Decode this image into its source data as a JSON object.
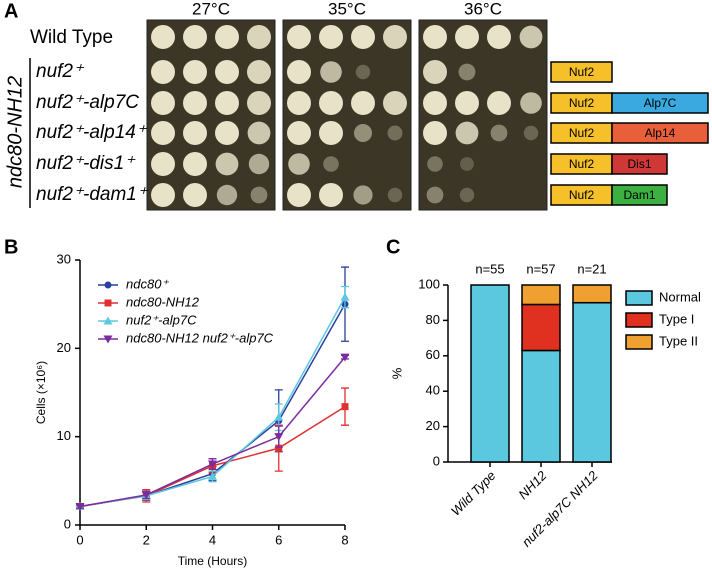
{
  "panel_labels": [
    "A",
    "B",
    "C"
  ],
  "panel_a": {
    "temperatures": [
      "27°C",
      "35°C",
      "36°C"
    ],
    "wild_type": "Wild Type",
    "group_label": "ndc80-NH12",
    "strains": [
      "nuf2⁺",
      "nuf2⁺-alp7C",
      "nuf2⁺-alp14⁺",
      "nuf2⁺-dis1⁺",
      "nuf2⁺-dam1⁺"
    ],
    "constructs": [
      {
        "parts": [
          "Nuf2"
        ],
        "colors": [
          "#f5c02a"
        ]
      },
      {
        "parts": [
          "Nuf2",
          "Alp7C"
        ],
        "colors": [
          "#f5c02a",
          "#3aa9e0"
        ]
      },
      {
        "parts": [
          "Nuf2",
          "Alp14"
        ],
        "colors": [
          "#f5c02a",
          "#e8603a"
        ]
      },
      {
        "parts": [
          "Nuf2",
          "Dis1"
        ],
        "colors": [
          "#f5c02a",
          "#d03838"
        ]
      },
      {
        "parts": [
          "Nuf2",
          "Dam1"
        ],
        "colors": [
          "#f5c02a",
          "#3cb040"
        ]
      }
    ]
  },
  "chart_data": [
    {
      "type": "line",
      "xlabel": "Time (Hours)",
      "ylabel": "Cells (×10⁶)",
      "x": [
        0,
        2,
        4,
        6,
        8
      ],
      "xlim": [
        0,
        8
      ],
      "xticks": [
        0,
        2,
        4,
        6,
        8
      ],
      "ylim": [
        0,
        30
      ],
      "yticks": [
        0,
        10,
        20,
        30
      ],
      "series": [
        {
          "name": "ndc80⁺",
          "color": "#2b3f9e",
          "marker": "circle",
          "values": [
            2.1,
            3.3,
            5.8,
            11.8,
            25.0
          ],
          "errors": [
            0.2,
            0.5,
            0.8,
            3.5,
            4.2
          ]
        },
        {
          "name": "ndc80-NH12",
          "color": "#e03030",
          "marker": "square",
          "values": [
            2.1,
            3.3,
            6.7,
            8.7,
            13.4
          ],
          "errors": [
            0.2,
            0.7,
            0.8,
            2.6,
            2.1
          ]
        },
        {
          "name": "nuf2⁺-alp7C",
          "color": "#5bc8e0",
          "marker": "triangle-up",
          "values": [
            2.1,
            3.3,
            5.5,
            12.2,
            25.8
          ],
          "errors": [
            0.2,
            0.4,
            0.6,
            1.5,
            1.2
          ]
        },
        {
          "name": "ndc80-NH12 nuf2⁺-alp7C",
          "color": "#7b2d9e",
          "marker": "triangle-down",
          "values": [
            2.1,
            3.4,
            6.9,
            10.0,
            19.0
          ],
          "errors": [
            0.2,
            0.4,
            0.6,
            1.2,
            0.2
          ]
        }
      ]
    },
    {
      "type": "stacked-bar",
      "ylabel": "%",
      "categories": [
        "Wild Type",
        "NH12",
        "nuf2-alp7C NH12"
      ],
      "annotations": [
        "n=55",
        "n=57",
        "n=21"
      ],
      "ylim": [
        0,
        100
      ],
      "yticks": [
        0,
        20,
        40,
        60,
        80,
        100
      ],
      "series": [
        {
          "name": "Normal",
          "color": "#5bc8e0",
          "values": [
            100,
            63,
            90
          ]
        },
        {
          "name": "Type I",
          "color": "#e03020",
          "values": [
            0,
            26,
            0
          ]
        },
        {
          "name": "Type II",
          "color": "#f0a030",
          "values": [
            0,
            11,
            10
          ]
        }
      ]
    }
  ]
}
